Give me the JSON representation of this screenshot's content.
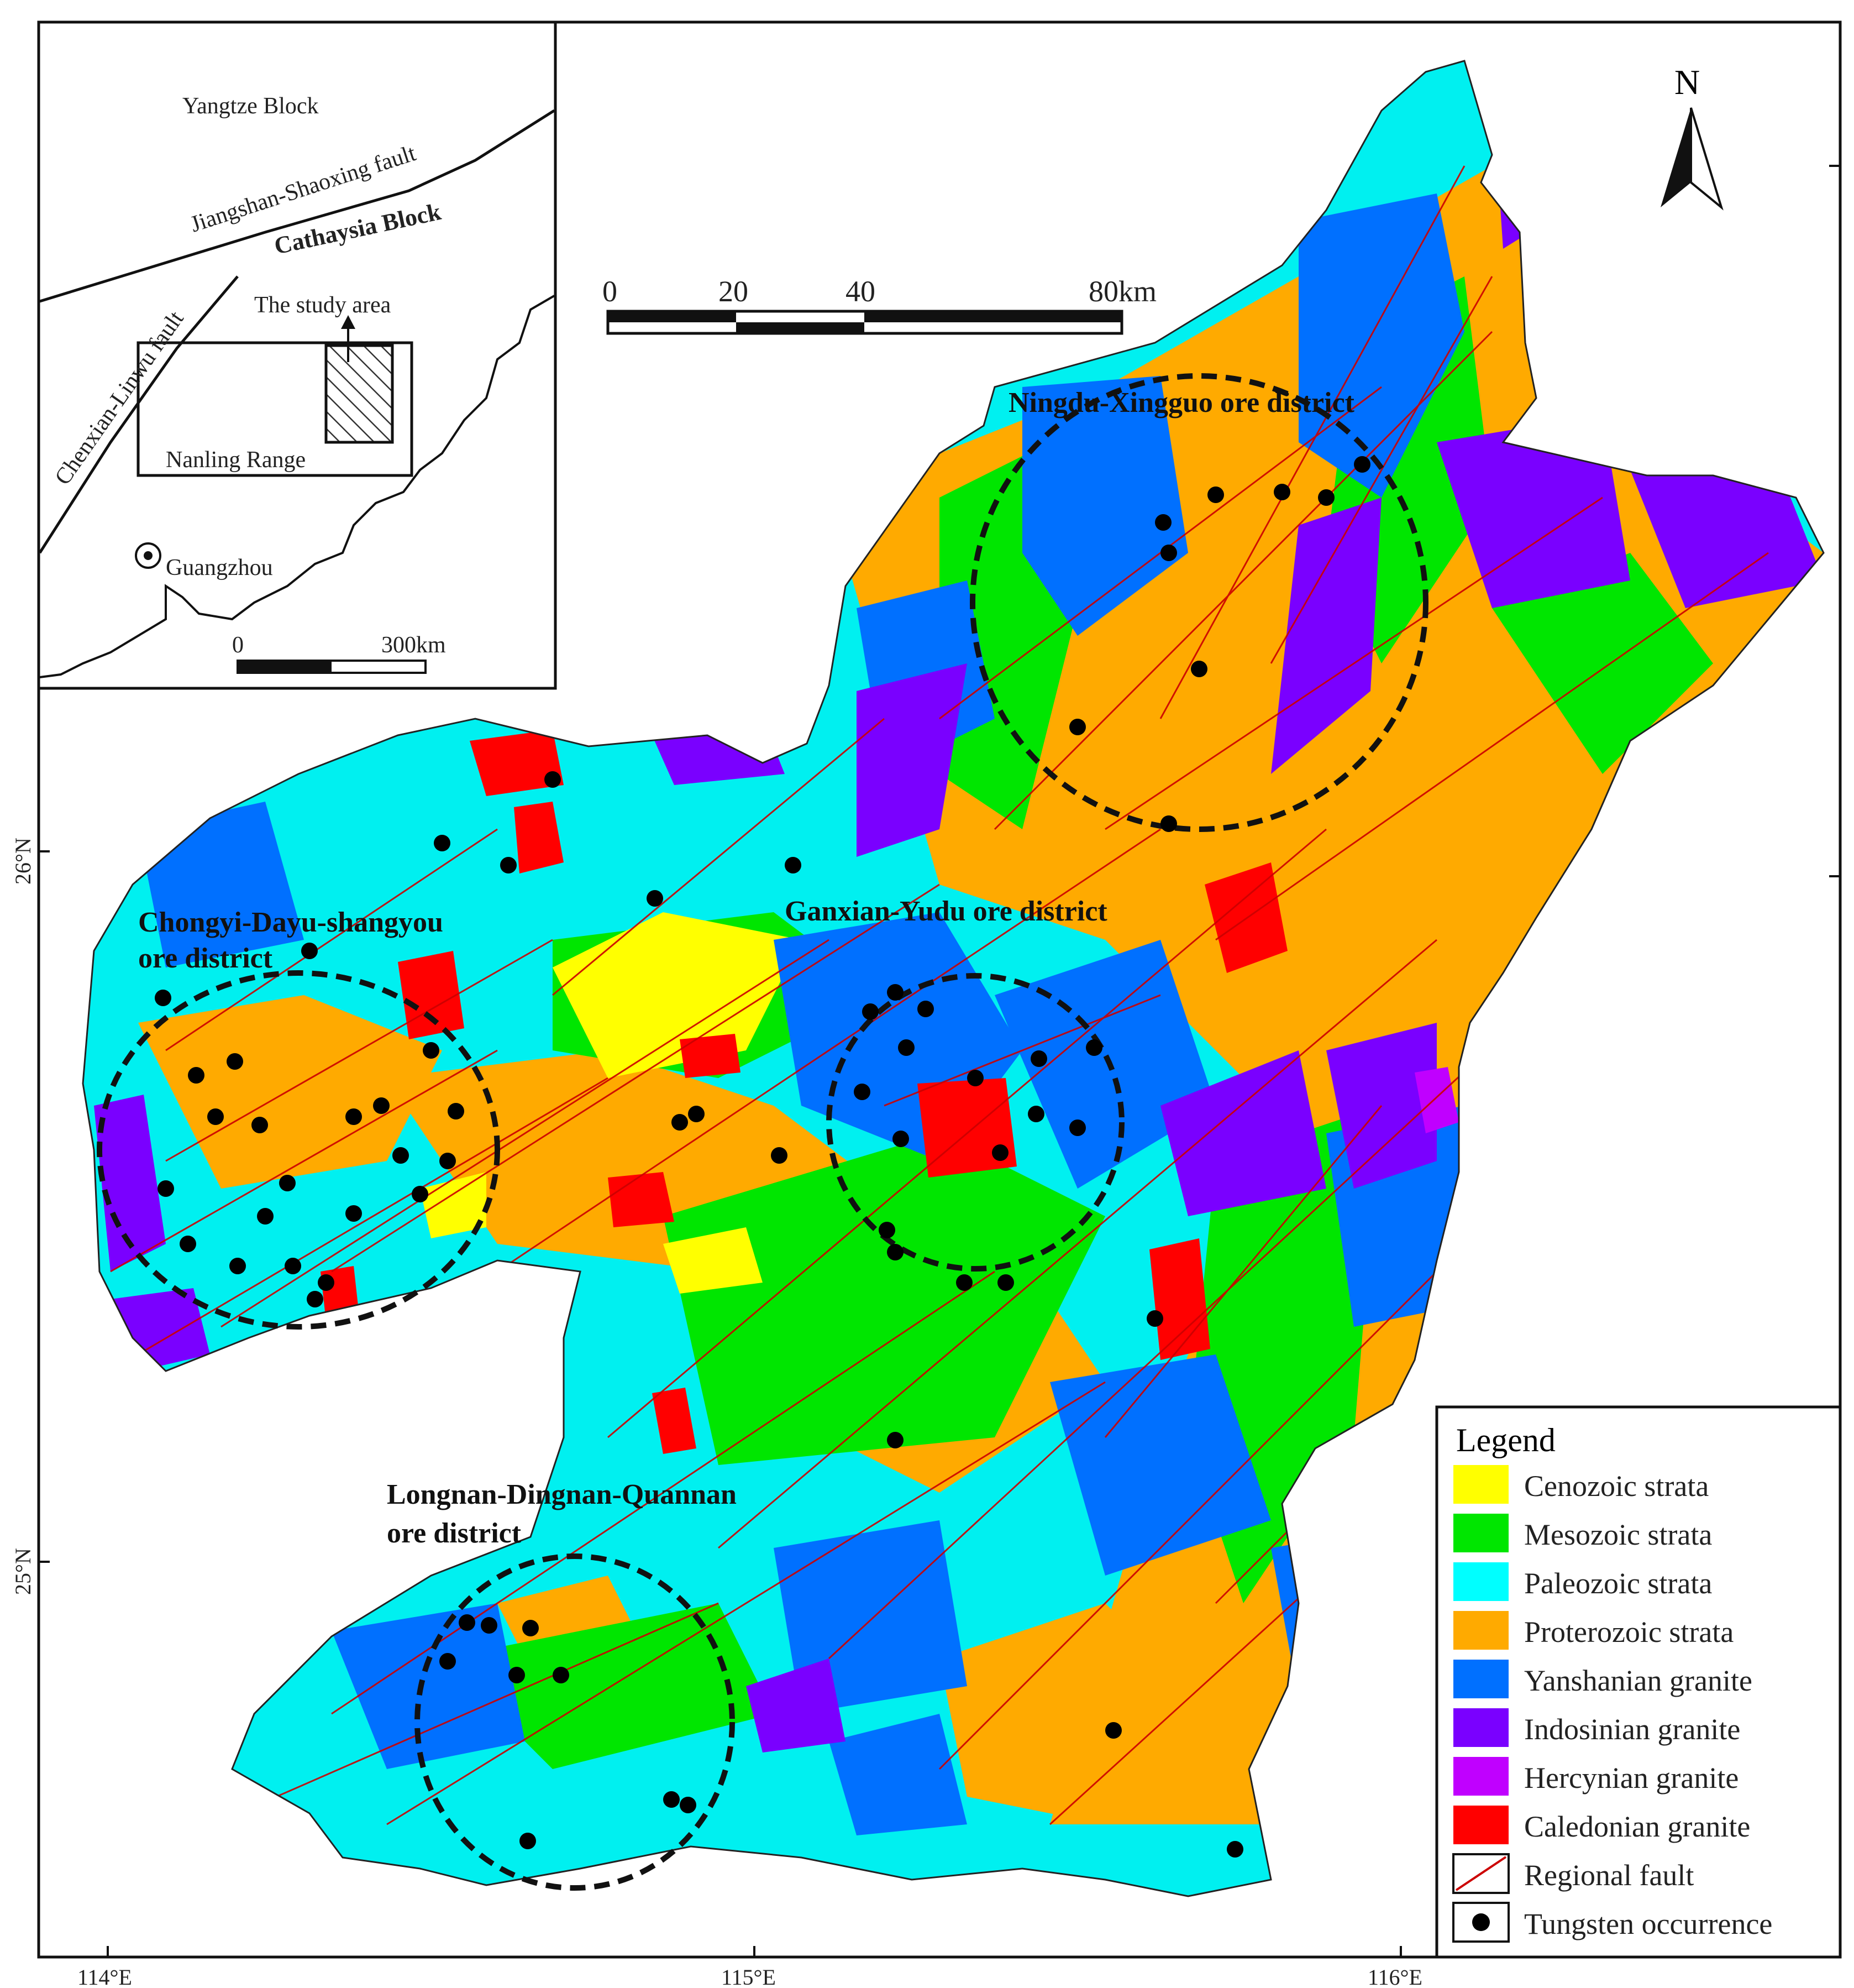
{
  "inset": {
    "yangtze_block": "Yangtze Block",
    "jiangshan_fault": "Jiangshan-Shaoxing fault",
    "cathaysia_block": "Cathaysia Block",
    "chenxian_fault": "Chenxian-Linwu fault",
    "study_area": "The study area",
    "nanling_range": "Nanling Range",
    "guangzhou": "Guangzhou",
    "scale_zero": "0",
    "scale_end": "300km"
  },
  "north_label": "N",
  "scale_bar": {
    "ticks": [
      "0",
      "20",
      "40",
      "80km"
    ]
  },
  "districts": {
    "ningdu": "Ningdu-Xingguo ore district",
    "ganxian": "Ganxian-Yudu ore district",
    "chongyi_line1": "Chongyi-Dayu-shangyou",
    "chongyi_line2": "ore district",
    "longnan_line1": "Longnan-Dingnan-Quannan",
    "longnan_line2": "ore district"
  },
  "axes": {
    "x_ticks": [
      "114°E",
      "115°E",
      "116°E"
    ],
    "y_ticks": [
      "26°N",
      "25°N"
    ]
  },
  "legend": {
    "title": "Legend",
    "items": [
      {
        "label": "Cenozoic strata",
        "color": "#ffff00"
      },
      {
        "label": "Mesozoic strata",
        "color": "#00e600"
      },
      {
        "label": "Paleozoic strata",
        "color": "#00ffff"
      },
      {
        "label": "Proterozoic strata",
        "color": "#ffaa00"
      },
      {
        "label": "Yanshanian granite",
        "color": "#0070ff"
      },
      {
        "label": "Indosinian granite",
        "color": "#7a00ff"
      },
      {
        "label": "Hercynian granite",
        "color": "#c000ff"
      },
      {
        "label": "Caledonian granite",
        "color": "#ff0000"
      },
      {
        "label": "Regional fault",
        "color": "#cc0000"
      },
      {
        "label": "Tungsten occurrence",
        "color": "#000000"
      }
    ]
  }
}
